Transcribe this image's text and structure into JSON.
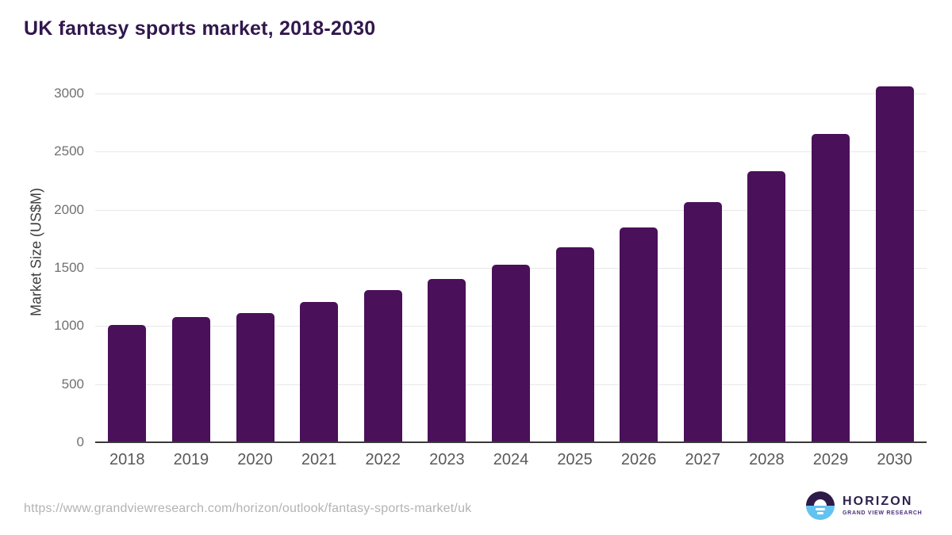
{
  "title": "UK fantasy sports market, 2018-2030",
  "source_url": "https://www.grandviewresearch.com/horizon/outlook/fantasy-sports-market/uk",
  "logo": {
    "icon": "sunrise-horizon-circle-icon",
    "name": "HORIZON",
    "subtitle": "GRAND VIEW RESEARCH"
  },
  "colors": {
    "bar": "#4a1059",
    "title": "#32174d",
    "axis": "#3a3a3a",
    "grid": "#e8e8e8",
    "tick": "#707070",
    "xlabel": "#595959",
    "url": "#b3b3b3",
    "icon_dark": "#2e1a47",
    "icon_blue": "#63c3f0",
    "logo_navy": "#2e1f4e",
    "logo_purple": "#4b2d7c"
  },
  "chart_data": {
    "type": "bar",
    "title": "UK fantasy sports market, 2018-2030",
    "categories": [
      "2018",
      "2019",
      "2020",
      "2021",
      "2022",
      "2023",
      "2024",
      "2025",
      "2026",
      "2027",
      "2028",
      "2029",
      "2030"
    ],
    "values": [
      1012,
      1080,
      1113,
      1204,
      1307,
      1405,
      1529,
      1680,
      1851,
      2068,
      2334,
      2653,
      3059
    ],
    "xlabel": "",
    "ylabel": "Market Size (US$M)",
    "ylim": [
      0,
      3000
    ],
    "yticks": [
      0,
      500,
      1000,
      1500,
      2000,
      2500,
      3000
    ],
    "grid": true,
    "legend": false,
    "bar_color": "#4a1059"
  }
}
